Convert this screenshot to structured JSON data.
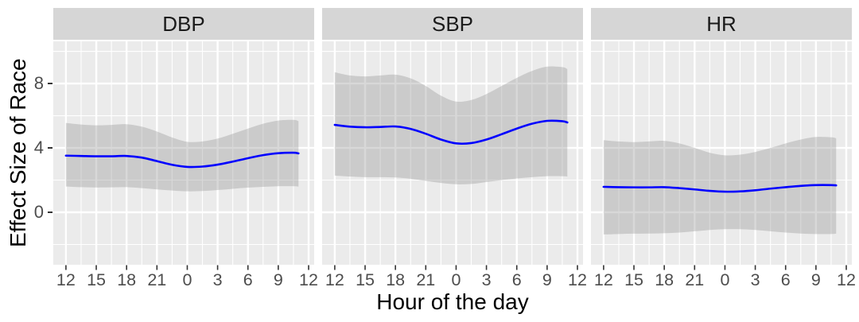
{
  "chart_data": {
    "type": "line",
    "title": "",
    "xlabel": "Hour of the day",
    "ylabel": "Effect Size of Race",
    "legend": "none",
    "grid": "on",
    "x_tick_labels": [
      "12",
      "15",
      "18",
      "21",
      "0",
      "3",
      "6",
      "9",
      "12"
    ],
    "x_tick_hours": [
      0,
      3,
      6,
      9,
      12,
      15,
      18,
      21,
      24
    ],
    "x_minor_hours": [
      1.5,
      4.5,
      7.5,
      10.5,
      13.5,
      16.5,
      19.5,
      22.5
    ],
    "y_ticks": [
      0,
      4,
      8
    ],
    "y_minor_ticks": [
      -2,
      2,
      6,
      10
    ],
    "xlim": [
      -1.25,
      24.55
    ],
    "ylim": [
      -3.26,
      10.62
    ],
    "sample_hours": [
      0,
      1.5,
      3,
      4.5,
      6,
      7.5,
      9,
      10.5,
      12,
      13.5,
      15,
      16.5,
      18,
      19.5,
      21,
      22.5,
      23
    ],
    "facets": [
      {
        "label": "DBP",
        "fit": [
          3.52,
          3.5,
          3.48,
          3.48,
          3.5,
          3.4,
          3.18,
          2.95,
          2.82,
          2.84,
          2.96,
          3.15,
          3.36,
          3.55,
          3.67,
          3.7,
          3.66
        ],
        "upper": [
          5.55,
          5.45,
          5.4,
          5.43,
          5.47,
          5.32,
          5.02,
          4.65,
          4.38,
          4.4,
          4.58,
          4.88,
          5.2,
          5.5,
          5.7,
          5.74,
          5.66
        ],
        "lower": [
          1.6,
          1.56,
          1.54,
          1.55,
          1.56,
          1.5,
          1.42,
          1.35,
          1.3,
          1.32,
          1.38,
          1.46,
          1.53,
          1.58,
          1.62,
          1.62,
          1.6
        ]
      },
      {
        "label": "SBP",
        "fit": [
          5.43,
          5.32,
          5.28,
          5.3,
          5.33,
          5.18,
          4.88,
          4.52,
          4.28,
          4.3,
          4.52,
          4.85,
          5.2,
          5.5,
          5.68,
          5.66,
          5.58
        ],
        "upper": [
          8.7,
          8.5,
          8.44,
          8.5,
          8.55,
          8.32,
          7.85,
          7.25,
          6.88,
          6.98,
          7.35,
          7.85,
          8.35,
          8.78,
          9.05,
          9.02,
          8.9
        ],
        "lower": [
          2.28,
          2.22,
          2.18,
          2.18,
          2.16,
          2.08,
          1.95,
          1.82,
          1.74,
          1.76,
          1.88,
          2.0,
          2.1,
          2.18,
          2.24,
          2.24,
          2.22
        ]
      },
      {
        "label": "HR",
        "fit": [
          1.58,
          1.56,
          1.55,
          1.55,
          1.56,
          1.5,
          1.42,
          1.33,
          1.28,
          1.3,
          1.37,
          1.47,
          1.56,
          1.64,
          1.69,
          1.69,
          1.67
        ],
        "upper": [
          4.48,
          4.4,
          4.36,
          4.4,
          4.44,
          4.28,
          4.0,
          3.7,
          3.54,
          3.58,
          3.75,
          4.0,
          4.28,
          4.52,
          4.68,
          4.66,
          4.6
        ],
        "lower": [
          -1.38,
          -1.35,
          -1.33,
          -1.32,
          -1.3,
          -1.26,
          -1.18,
          -1.1,
          -1.05,
          -1.05,
          -1.1,
          -1.18,
          -1.26,
          -1.32,
          -1.35,
          -1.35,
          -1.33
        ]
      }
    ]
  },
  "colors": {
    "fit_line": "#0000ff",
    "ribbon": "rgba(153,153,153,0.38)",
    "panel_bg": "#ebebeb",
    "strip_bg": "#d6d6d6",
    "gridline": "#ffffff",
    "tick_label": "#4d4d4d",
    "tick_mark": "#333333",
    "axis_title": "#000000"
  }
}
